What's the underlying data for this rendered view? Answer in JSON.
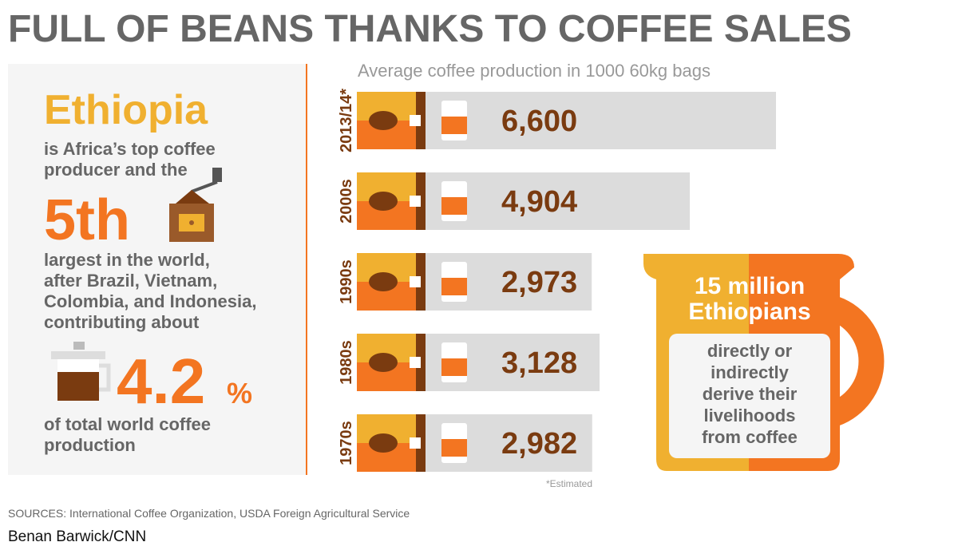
{
  "header": {
    "title": "FULL OF BEANS THANKS TO COFFEE SALES"
  },
  "panel": {
    "country": "Ethiopia",
    "lines_a": [
      "is Africa’s top coffee",
      "producer and the"
    ],
    "rank": "5th",
    "lines_b": [
      "largest in the world,",
      "after Brazil, Vietnam,",
      "Colombia, and Indonesia,",
      "contributing about"
    ],
    "share": "4.2",
    "share_unit": "%",
    "lines_c": [
      "of total world coffee",
      "production"
    ]
  },
  "chart_data": {
    "type": "bar",
    "orientation": "horizontal",
    "title": "Average coffee production in 1000 60kg bags",
    "categories": [
      "2013/14*",
      "2000s",
      "1990s",
      "1980s",
      "1970s"
    ],
    "values": [
      6600,
      4904,
      2973,
      3128,
      2982
    ],
    "value_labels": [
      "6,600",
      "4,904",
      "2,973",
      "3,128",
      "2,982"
    ],
    "color": "#dcdcdc",
    "label_color": "#7a3b10",
    "note": "*Estimated"
  },
  "jug": {
    "headline": [
      "15 million",
      "Ethiopians"
    ],
    "body": [
      "directly or",
      "indirectly",
      "derive their",
      "livelihoods",
      "from coffee"
    ]
  },
  "footer": {
    "sources": "SOURCES: International Coffee Organization, USDA Foreign Agricultural Service",
    "credit": "Benan Barwick/CNN"
  }
}
